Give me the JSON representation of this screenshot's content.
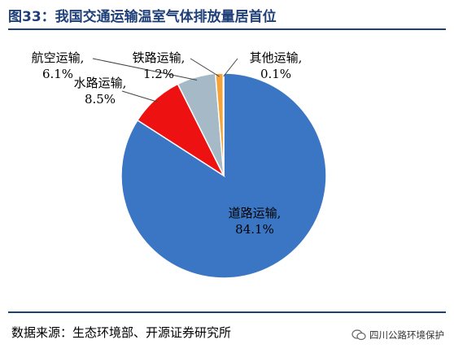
{
  "title": "图33：我国交通运输温室气体排放量居首位",
  "source": "数据来源：生态环境部、开源证券研究所",
  "watermark": "四川公路环境保护",
  "chart_data": {
    "type": "pie",
    "title": "",
    "slices": [
      {
        "label": "道路运输,",
        "value": 84.1,
        "display": "84.1%",
        "color": "#3b76c4"
      },
      {
        "label": "水路运输,",
        "value": 8.5,
        "display": "8.5%",
        "color": "#ee1111"
      },
      {
        "label": "航空运输,",
        "value": 6.1,
        "display": "6.1%",
        "color": "#a6b9c6"
      },
      {
        "label": "铁路运输,",
        "value": 1.2,
        "display": "1.2%",
        "color": "#f5a43c"
      },
      {
        "label": "其他运输,",
        "value": 0.1,
        "display": "0.1%",
        "color": "#f5d33c"
      }
    ]
  }
}
